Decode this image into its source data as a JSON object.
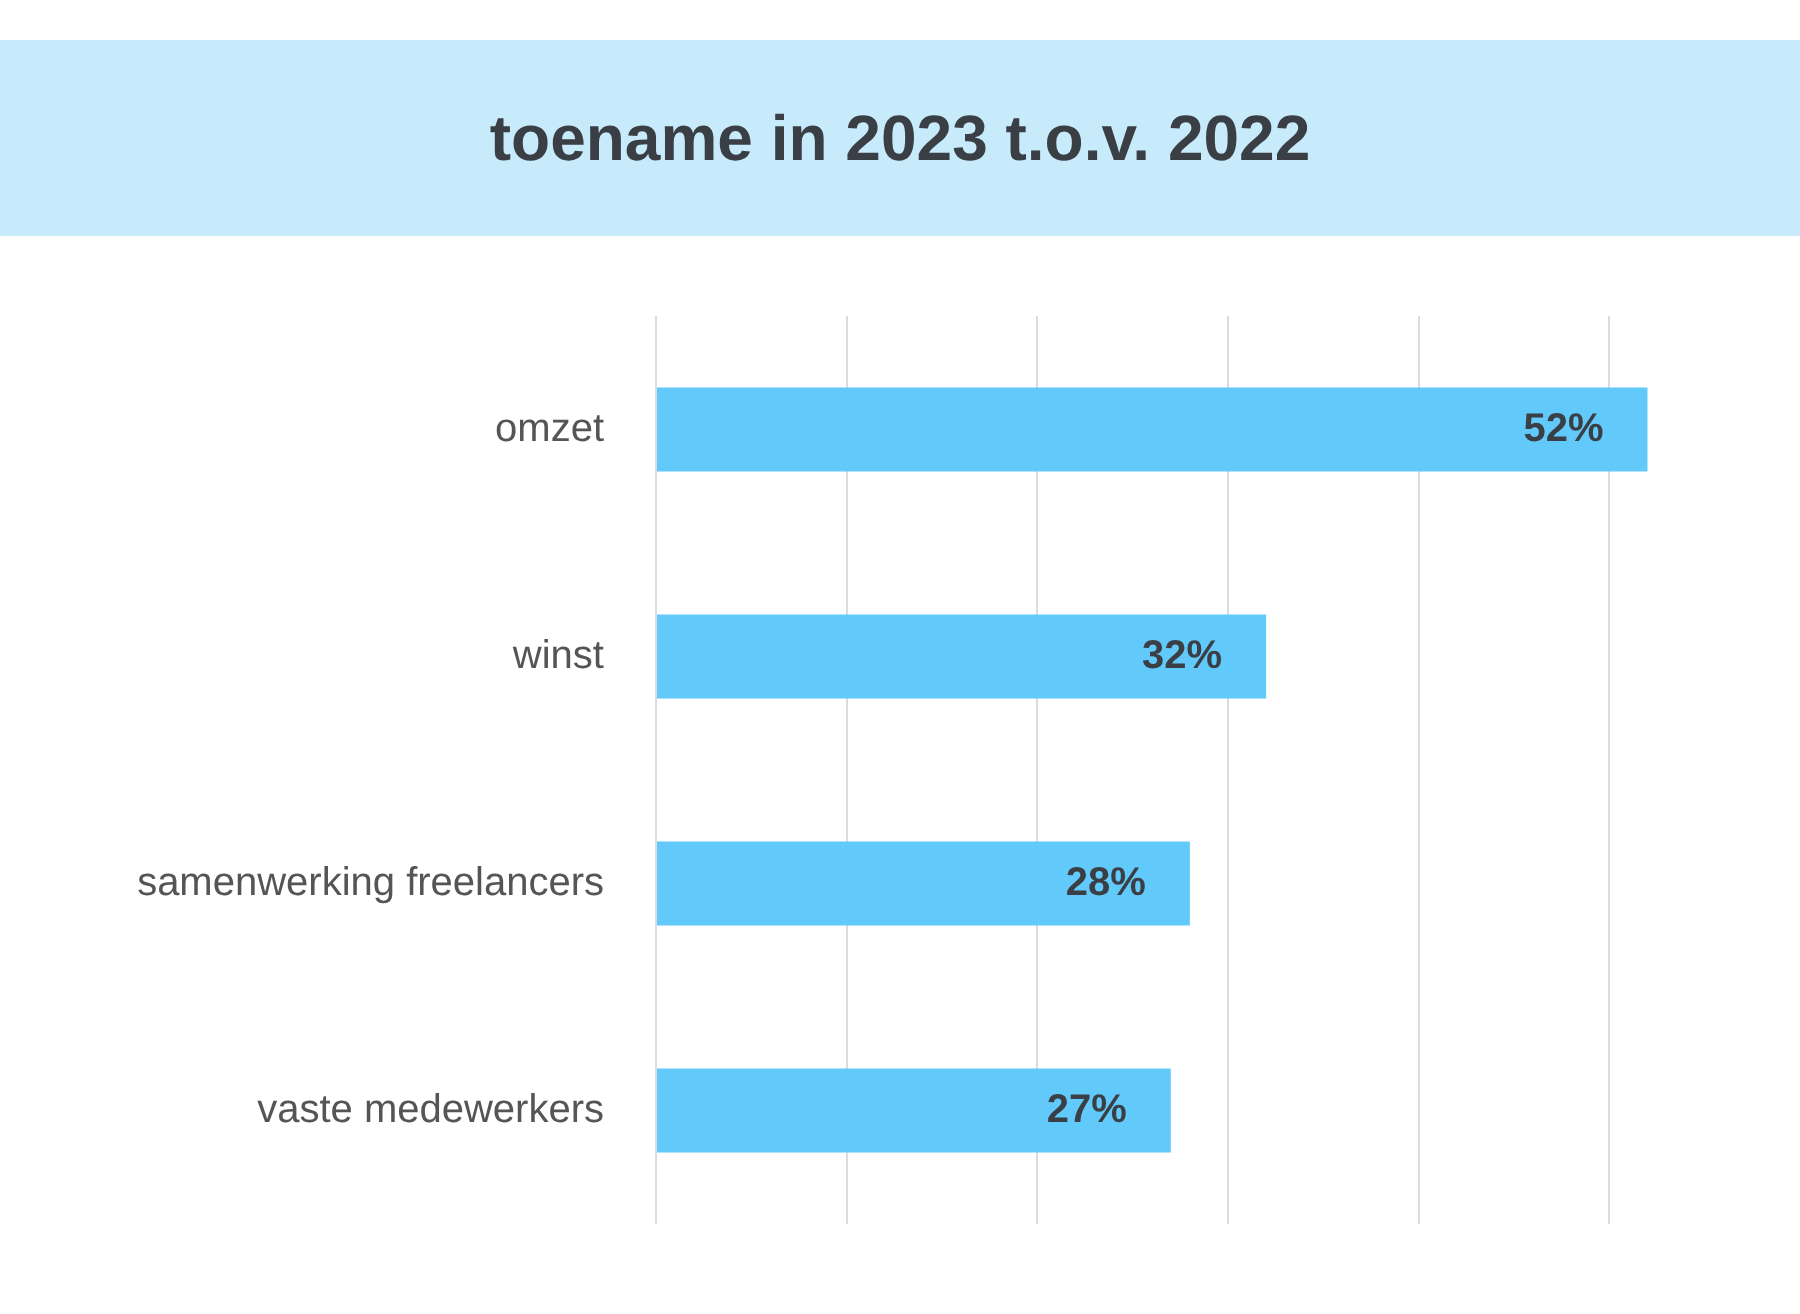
{
  "chart_data": {
    "type": "bar",
    "orientation": "horizontal",
    "title": "toename in 2023 t.o.v. 2022",
    "categories": [
      "omzet",
      "winst",
      "samenwerking freelancers",
      "vaste medewerkers"
    ],
    "values": [
      52,
      32,
      28,
      27
    ],
    "value_labels": [
      "52%",
      "32%",
      "28%",
      "27%"
    ],
    "color": "#62c9fb",
    "xticks": [
      {
        "value": 0,
        "label": null
      },
      {
        "value": 10,
        "label": null
      },
      {
        "value": 20,
        "label": null
      },
      {
        "value": 30,
        "label": null
      },
      {
        "value": 40,
        "label": null
      },
      {
        "value": 50,
        "label": null
      }
    ],
    "tick_labels": "y",
    "grid": "x",
    "legend": false
  }
}
